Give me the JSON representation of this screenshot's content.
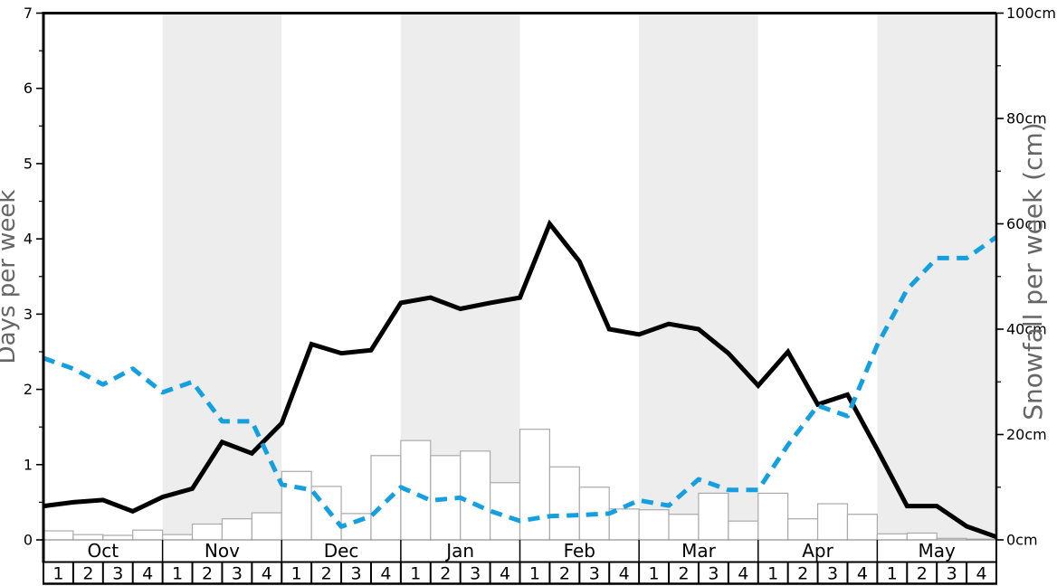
{
  "chart_data": {
    "type": "line",
    "title": "",
    "description": "Weekly snow history chart: black solid line = days per week (left axis), blue dashed line = snowfall per week in cm (right axis), outlined bars = weekly amounts on left-axis scale. Season runs October to May, four weeks per month, alternating months shaded grey.",
    "left_axis": {
      "label": "Days per week",
      "min": 0,
      "max": 7,
      "tick_values": [
        0,
        1,
        2,
        3,
        4,
        5,
        6,
        7
      ],
      "tick_labels": [
        "0",
        "1",
        "2",
        "3",
        "4",
        "5",
        "6",
        "7"
      ],
      "minor_tick_step": 0.5
    },
    "right_axis": {
      "label": "Snowfall per week (cm)",
      "min": 0,
      "max": 100,
      "tick_values": [
        0,
        20,
        40,
        60,
        80,
        100
      ],
      "tick_labels": [
        "0cm",
        "20cm",
        "40cm",
        "60cm",
        "80cm",
        "100cm"
      ],
      "minor_tick_step": 10
    },
    "months": [
      {
        "label": "Oct",
        "shaded": false
      },
      {
        "label": "Nov",
        "shaded": true
      },
      {
        "label": "Dec",
        "shaded": false
      },
      {
        "label": "Jan",
        "shaded": true
      },
      {
        "label": "Feb",
        "shaded": false
      },
      {
        "label": "Mar",
        "shaded": true
      },
      {
        "label": "Apr",
        "shaded": false
      },
      {
        "label": "May",
        "shaded": true
      }
    ],
    "week_labels": [
      "1",
      "2",
      "3",
      "4"
    ],
    "series": [
      {
        "name": "days-per-week-line",
        "type": "line",
        "style": "solid",
        "axis": "left",
        "color": "#000000",
        "note": "33 vertices at week boundaries from start of Oct week 1 to end of May week 4",
        "values": [
          0.45,
          0.5,
          0.53,
          0.38,
          0.57,
          0.68,
          1.3,
          1.15,
          1.55,
          2.6,
          2.48,
          2.52,
          3.15,
          3.22,
          3.07,
          3.15,
          3.22,
          4.2,
          3.7,
          2.8,
          2.73,
          2.87,
          2.8,
          2.48,
          2.05,
          2.5,
          1.8,
          1.93,
          1.2,
          0.45,
          0.45,
          0.18,
          0.04
        ]
      },
      {
        "name": "snowfall-per-week-line",
        "type": "line",
        "style": "dashed",
        "axis": "right",
        "color": "#14a0e0",
        "note": "33 vertices at week boundaries, values in cm",
        "values": [
          34.5,
          32.5,
          29.5,
          32.5,
          28,
          30,
          22.5,
          22.5,
          10.5,
          9.5,
          2.5,
          4.5,
          10,
          7.5,
          8,
          5.5,
          3.6,
          4.5,
          4.7,
          5,
          7.5,
          6.5,
          11.5,
          9.5,
          9.5,
          18,
          25.5,
          23.5,
          37,
          47.5,
          53.5,
          53.5,
          57.5
        ]
      },
      {
        "name": "weekly-bars",
        "type": "bar",
        "axis": "left",
        "fill": "#ffffff",
        "border": "#aaaaaa",
        "note": "one bar per week, 32 weeks Oct-May",
        "values": [
          0.12,
          0.07,
          0.06,
          0.13,
          0.07,
          0.21,
          0.28,
          0.36,
          0.91,
          0.71,
          0.35,
          1.12,
          1.32,
          1.12,
          1.18,
          0.76,
          1.47,
          0.97,
          0.7,
          0.41,
          0.4,
          0.34,
          0.62,
          0.25,
          0.62,
          0.28,
          0.48,
          0.34,
          0.08,
          0.09,
          0.02,
          0.01
        ]
      }
    ],
    "colors": {
      "background": "#ffffff",
      "shaded_month_band": "#ededed",
      "axis_spine": "#000000",
      "baseline_gridline": "#888888",
      "axis_title_text": "#666666",
      "tick_label_text": "#000000",
      "snowfall_line_blue": "#14a0e0",
      "days_line_black": "#000000",
      "bar_outline_grey": "#aaaaaa"
    },
    "legend": {
      "visible": false
    }
  }
}
